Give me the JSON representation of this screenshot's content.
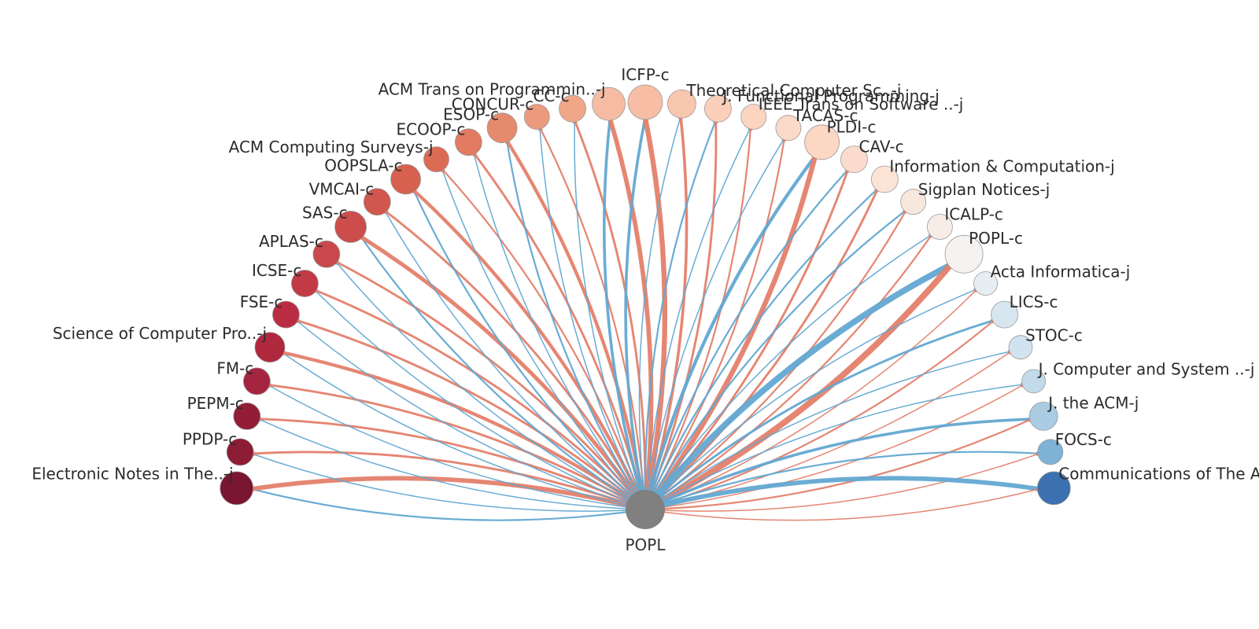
{
  "center": {
    "label": "POPL",
    "color": "#808080"
  },
  "palette": {
    "incoming": "#e4806a",
    "outgoing": "#62a8d2"
  },
  "nodes": [
    {
      "label": "Electronic Notes in The..-j",
      "color": "#7a1630",
      "in": 0.7,
      "out": 0.2
    },
    {
      "label": "PPDP-c",
      "color": "#8d1c35",
      "in": 0.3,
      "out": 0.1
    },
    {
      "label": "PEPM-c",
      "color": "#931d37",
      "in": 0.3,
      "out": 0.1
    },
    {
      "label": "FM-c",
      "color": "#a52540",
      "in": 0.3,
      "out": 0.1
    },
    {
      "label": "Science of Computer Pro..-j",
      "color": "#b0283e",
      "in": 0.5,
      "out": 0.1
    },
    {
      "label": "FSE-c",
      "color": "#ba2c42",
      "in": 0.3,
      "out": 0.1
    },
    {
      "label": "ICSE-c",
      "color": "#c13a45",
      "in": 0.3,
      "out": 0.1
    },
    {
      "label": "APLAS-c",
      "color": "#c8484b",
      "in": 0.3,
      "out": 0.1
    },
    {
      "label": "SAS-c",
      "color": "#cc4d4b",
      "in": 0.6,
      "out": 0.2
    },
    {
      "label": "VMCAI-c",
      "color": "#d0574e",
      "in": 0.3,
      "out": 0.1
    },
    {
      "label": "OOPSLA-c",
      "color": "#d7614f",
      "in": 0.5,
      "out": 0.2
    },
    {
      "label": "ACM Computing Surveys-j",
      "color": "#dc6b56",
      "in": 0.2,
      "out": 0.1
    },
    {
      "label": "ECOOP-c",
      "color": "#e27b61",
      "in": 0.3,
      "out": 0.1
    },
    {
      "label": "ESOP-c",
      "color": "#e68a6e",
      "in": 0.5,
      "out": 0.2
    },
    {
      "label": "CONCUR-c",
      "color": "#ec9a7d",
      "in": 0.2,
      "out": 0.1
    },
    {
      "label": "CC-c",
      "color": "#f0a788",
      "in": 0.3,
      "out": 0.1
    },
    {
      "label": "ACM Trans on Programmin..-j",
      "color": "#f6bca3",
      "in": 0.7,
      "out": 0.4
    },
    {
      "label": "ICFP-c",
      "color": "#f7bea5",
      "in": 0.8,
      "out": 0.4
    },
    {
      "label": "Theoretical Computer Sc..-j",
      "color": "#f9c6ae",
      "in": 0.4,
      "out": 0.1
    },
    {
      "label": "J. Functional Programming-j",
      "color": "#fbcfb9",
      "in": 0.3,
      "out": 0.2
    },
    {
      "label": "IEEE Trans on Software ..-j",
      "color": "#fbd5c0",
      "in": 0.2,
      "out": 0.1
    },
    {
      "label": "TACAS-c",
      "color": "#fcdac8",
      "in": 0.2,
      "out": 0.1
    },
    {
      "label": "PLDI-c",
      "color": "#fcd7c4",
      "in": 0.8,
      "out": 0.5
    },
    {
      "label": "CAV-c",
      "color": "#fbdccc",
      "in": 0.3,
      "out": 0.2
    },
    {
      "label": "Information & Computation-j",
      "color": "#fbe3d6",
      "in": 0.3,
      "out": 0.2
    },
    {
      "label": "Sigplan Notices-j",
      "color": "#f8e7dc",
      "in": 0.2,
      "out": 0.2
    },
    {
      "label": "ICALP-c",
      "color": "#f8ede6",
      "in": 0.2,
      "out": 0.1
    },
    {
      "label": "POPL-c",
      "color": "#f6f2ef",
      "in": 1.0,
      "out": 1.0
    },
    {
      "label": "Acta Informatica-j",
      "color": "#e6eef4",
      "in": 0.1,
      "out": 0.1
    },
    {
      "label": "LICS-c",
      "color": "#d8e6f0",
      "in": 0.2,
      "out": 0.3
    },
    {
      "label": "STOC-c",
      "color": "#d1e3ef",
      "in": 0.1,
      "out": 0.1
    },
    {
      "label": "J. Computer and System ..-j",
      "color": "#c2daea",
      "in": 0.1,
      "out": 0.1
    },
    {
      "label": "J. the ACM-j",
      "color": "#a9cce3",
      "in": 0.2,
      "out": 0.4
    },
    {
      "label": "FOCS-c",
      "color": "#7fb2d7",
      "in": 0.1,
      "out": 0.2
    },
    {
      "label": "Communications of The AC",
      "color": "#3b70b1",
      "in": 0.1,
      "out": 0.7
    }
  ]
}
